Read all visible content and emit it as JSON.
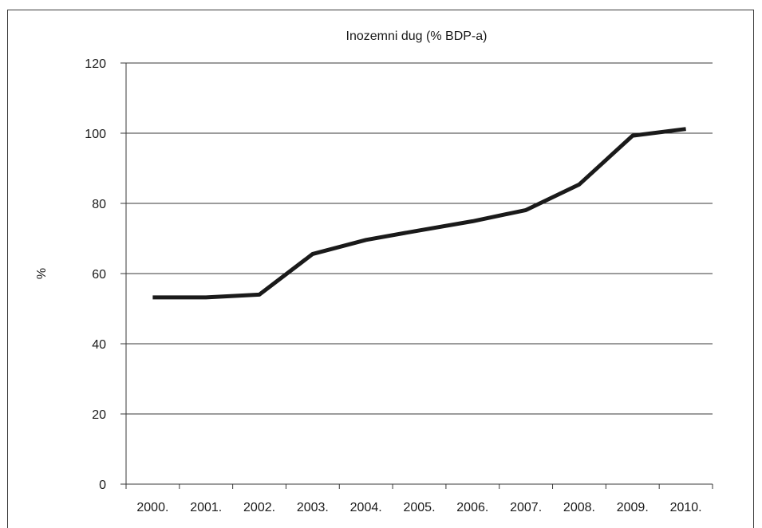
{
  "chart_data": {
    "type": "line",
    "title": "Inozemni dug (% BDP-a)",
    "ylabel": "%",
    "xlabel": "",
    "categories": [
      "2000.",
      "2001.",
      "2002.",
      "2003.",
      "2004.",
      "2005.",
      "2006.",
      "2007.",
      "2008.",
      "2009.",
      "2010."
    ],
    "series": [
      {
        "values": [
          53.2,
          53.2,
          54.0,
          65.6,
          69.6,
          72.3,
          74.9,
          78.1,
          85.4,
          99.3,
          101.2
        ]
      }
    ],
    "yticks": [
      "0",
      "20",
      "40",
      "60",
      "80",
      "100",
      "120"
    ],
    "ylim": [
      0,
      120
    ],
    "grid": true,
    "line_color": "#1a1a1a"
  }
}
